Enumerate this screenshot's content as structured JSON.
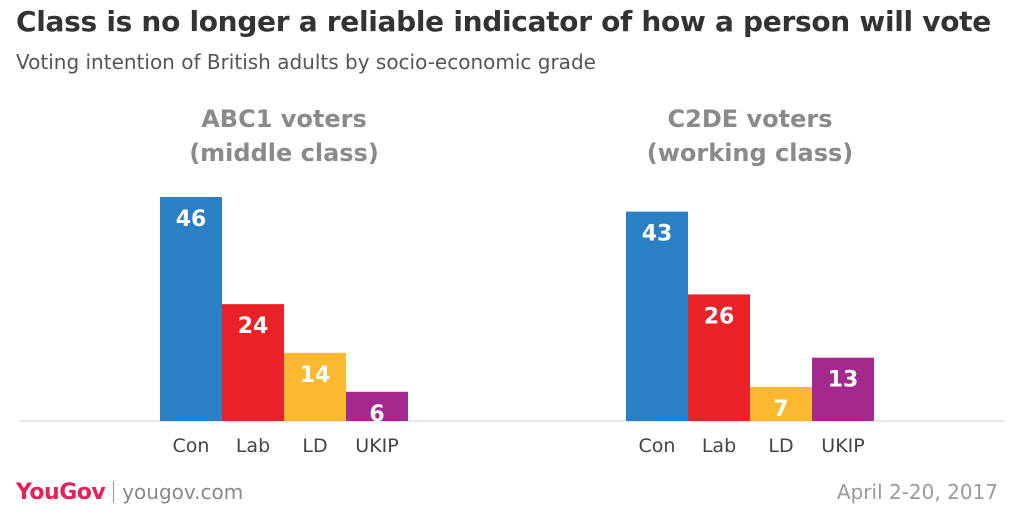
{
  "header": {
    "title": "Class is no longer a reliable indicator of how a person will vote",
    "subtitle": "Voting intention of British adults by socio-economic grade"
  },
  "footer": {
    "logo": "YouGov",
    "site": "yougov.com",
    "date": "April 2-20, 2017"
  },
  "colors": {
    "Con": "#2b7fc5",
    "Lab": "#ea2127",
    "LD": "#fbb830",
    "UKIP": "#a3298f",
    "baseline": "#cccccc"
  },
  "chart_data": [
    {
      "type": "bar",
      "title_lines": [
        "ABC1 voters",
        "(middle class)"
      ],
      "categories": [
        "Con",
        "Lab",
        "LD",
        "UKIP"
      ],
      "values": [
        46,
        24,
        14,
        6
      ],
      "ylim": [
        0,
        46
      ]
    },
    {
      "type": "bar",
      "title_lines": [
        "C2DE voters",
        "(working class)"
      ],
      "categories": [
        "Con",
        "Lab",
        "LD",
        "UKIP"
      ],
      "values": [
        43,
        26,
        7,
        13
      ],
      "ylim": [
        0,
        46
      ]
    }
  ]
}
